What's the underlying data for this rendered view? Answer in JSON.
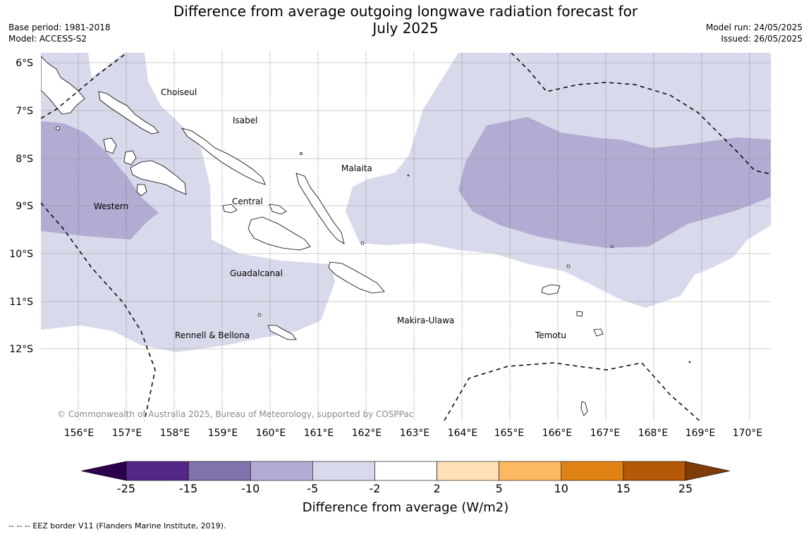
{
  "header": {
    "title_line1": "Difference from average outgoing longwave radiation forecast for",
    "title_line2": "July 2025",
    "base_period": "Base period: 1981-2018",
    "model": "Model: ACCESS-S2",
    "model_run": "Model run: 24/05/2025",
    "issued": "Issued: 26/05/2025"
  },
  "map": {
    "lat_labels": [
      "6°S",
      "7°S",
      "8°S",
      "9°S",
      "10°S",
      "11°S",
      "12°S"
    ],
    "lon_labels": [
      "156°E",
      "157°E",
      "158°E",
      "159°E",
      "160°E",
      "161°E",
      "162°E",
      "163°E",
      "164°E",
      "165°E",
      "166°E",
      "167°E",
      "168°E",
      "169°E",
      "170°E"
    ],
    "regions": [
      "Choiseul",
      "Isabel",
      "Malaita",
      "Western",
      "Central",
      "Guadalcanal",
      "Rennell & Bellona",
      "Makira-Ulawa",
      "Temotu"
    ],
    "copyright": "© Commonwealth of Australia 2025, Bureau of Meteorology, supported by COSPPac"
  },
  "colorbar": {
    "ticks": [
      "-25",
      "-15",
      "-10",
      "-5",
      "-2",
      "2",
      "5",
      "10",
      "15",
      "25"
    ],
    "colors": [
      "#2d004b",
      "#542788",
      "#8073ac",
      "#b2abd2",
      "#d8daeb",
      "#ffffff",
      "#fee0b6",
      "#fdb863",
      "#e08214",
      "#b35806",
      "#7f3b08"
    ],
    "label": "Difference from average (W/m2)"
  },
  "footer": {
    "legend_text": "--  --  -- EEZ border V11 (Flanders Marine Institute, 2019)."
  }
}
